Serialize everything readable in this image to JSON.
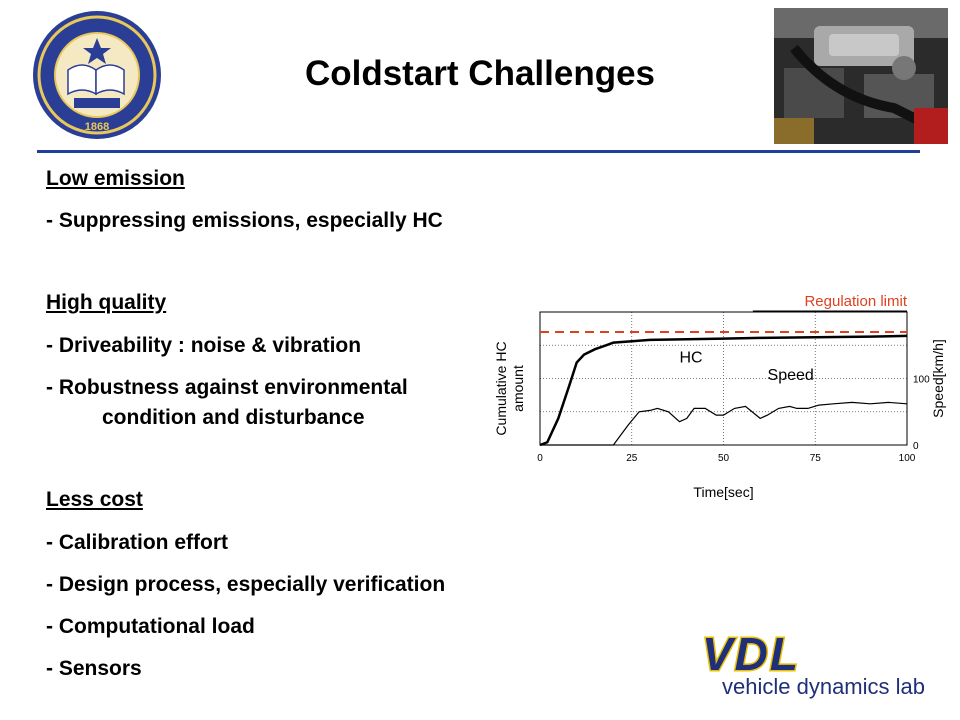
{
  "slide": {
    "title": "Coldstart Challenges",
    "university_seal": {
      "icon": "uc-seal-icon",
      "lettering": "THE UNIVERSITY OF CALIFORNIA 1868 LET THERE BE LIGHT"
    },
    "engine_photo": {
      "icon": "engine-photo-icon"
    },
    "sections": [
      {
        "heading": "Low emission",
        "items": [
          "- Suppressing emissions, especially HC"
        ]
      },
      {
        "heading": "High quality",
        "items": [
          "- Driveability : noise & vibration",
          "- Robustness against environmental",
          "condition and disturbance"
        ]
      },
      {
        "heading": "Less cost",
        "items": [
          "- Calibration effort",
          "- Design process, especially verification",
          "- Computational load",
          "- Sensors"
        ]
      }
    ],
    "logo": {
      "text": "VDL",
      "subtitle": "vehicle dynamics lab",
      "colors": {
        "letters": "#1f2f7a",
        "outline": "#e8c000",
        "subtitle": "#1f2f7a"
      }
    }
  },
  "colors": {
    "title_rule": "#1f3f99",
    "regulation": "#e04020"
  },
  "chart_data": {
    "type": "line",
    "xlabel": "Time[sec]",
    "ylabel_left": "Cumulative HC amount",
    "ylabel_right": "Speed[km/h]",
    "xlim": [
      0,
      100
    ],
    "x_ticks": [
      "0",
      "25",
      "50",
      "75",
      "100"
    ],
    "right_ticks": [
      "0",
      "100"
    ],
    "right_lim": [
      0,
      200
    ],
    "grid": true,
    "annotations": [
      "Regulation limit"
    ],
    "regulation_limit": 0.85,
    "series": [
      {
        "name": "HC",
        "x": [
          0,
          2,
          5,
          8,
          10,
          12,
          15,
          18,
          20,
          25,
          30,
          40,
          50,
          60,
          75,
          90,
          100
        ],
        "y": [
          0,
          0.02,
          0.2,
          0.45,
          0.62,
          0.68,
          0.72,
          0.75,
          0.77,
          0.78,
          0.79,
          0.795,
          0.8,
          0.805,
          0.81,
          0.815,
          0.82
        ]
      },
      {
        "name": "Speed",
        "x": [
          0,
          20,
          24,
          27,
          30,
          32,
          35,
          38,
          40,
          42,
          45,
          48,
          50,
          53,
          56,
          60,
          62,
          65,
          68,
          70,
          73,
          76,
          80,
          85,
          90,
          95,
          100
        ],
        "y": [
          0,
          0,
          30,
          50,
          52,
          55,
          50,
          35,
          40,
          55,
          55,
          45,
          45,
          55,
          58,
          40,
          45,
          55,
          58,
          55,
          55,
          60,
          62,
          64,
          62,
          64,
          62
        ]
      }
    ]
  }
}
